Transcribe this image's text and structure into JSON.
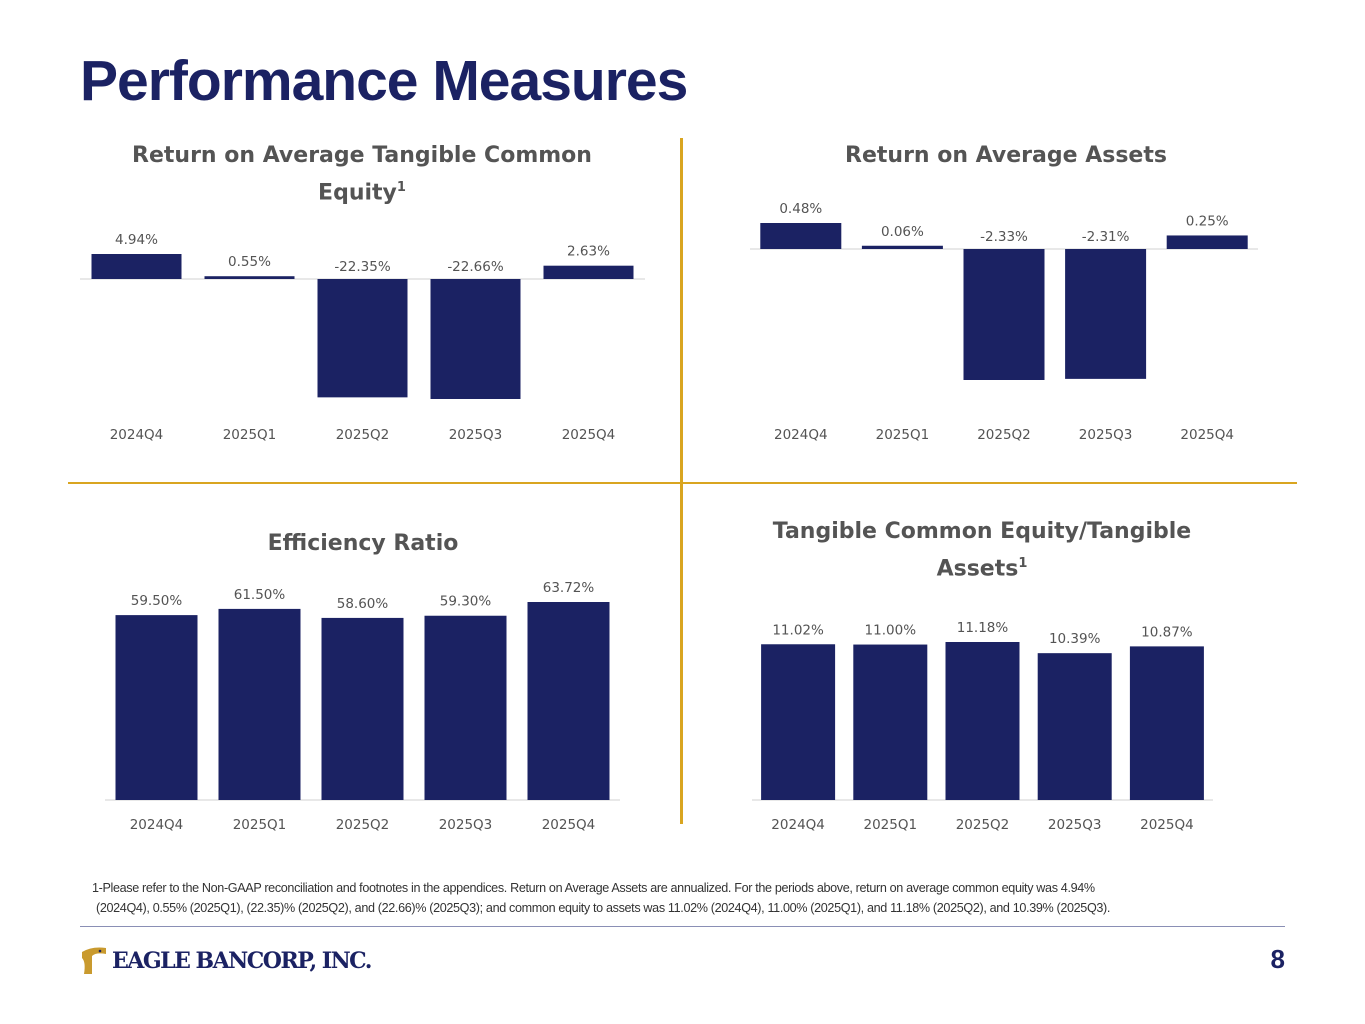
{
  "page": {
    "title": "Performance Measures",
    "footnote_line1": "1-Please refer to the Non-GAAP reconciliation and footnotes in the appendices. Return on Average Assets are annualized. For the periods above, return on average common equity was 4.94%",
    "footnote_line2": "(2024Q4), 0.55% (2025Q1), (22.35)% (2025Q2), and (22.66)% (2025Q3); and common equity to assets was 11.02% (2024Q4), 11.00% (2025Q1), and 11.18% (2025Q2), and 10.39% (2025Q3).",
    "logo_text": "EAGLE BANCORP, INC.",
    "page_number": "8"
  },
  "colors": {
    "bar": "#1b2263",
    "accent": "#d9a520",
    "title": "#1b2263",
    "label": "#545454"
  },
  "chart_data": [
    {
      "type": "bar",
      "title": "Return on Average Tangible Common Equity",
      "title_sup": "1",
      "categories": [
        "2024Q4",
        "2025Q1",
        "2025Q2",
        "2025Q3",
        "2025Q4"
      ],
      "values": [
        4.94,
        0.55,
        -22.35,
        -22.66,
        2.63
      ],
      "labels": [
        "4.94%",
        "0.55%",
        "-22.35%",
        "-22.66%",
        "2.63%"
      ],
      "ylim": [
        -22.66,
        4.94
      ],
      "xlabel": "",
      "ylabel": "",
      "legend": "none"
    },
    {
      "type": "bar",
      "title": "Return on Average Assets",
      "title_sup": "",
      "categories": [
        "2024Q4",
        "2025Q1",
        "2025Q2",
        "2025Q3",
        "2025Q4"
      ],
      "values": [
        0.48,
        0.06,
        -2.33,
        -2.31,
        0.25
      ],
      "labels": [
        "0.48%",
        "0.06%",
        "-2.33%",
        "-2.31%",
        "0.25%"
      ],
      "ylim": [
        -2.33,
        0.48
      ],
      "xlabel": "",
      "ylabel": "",
      "legend": "none"
    },
    {
      "type": "bar",
      "title": "Efficiency Ratio",
      "title_sup": "",
      "categories": [
        "2024Q4",
        "2025Q1",
        "2025Q2",
        "2025Q3",
        "2025Q4"
      ],
      "values": [
        59.5,
        61.5,
        58.6,
        59.3,
        63.72
      ],
      "labels": [
        "59.50%",
        "61.50%",
        "58.60%",
        "59.30%",
        "63.72%"
      ],
      "ylim": [
        0,
        63.72
      ],
      "xlabel": "",
      "ylabel": "",
      "legend": "none"
    },
    {
      "type": "bar",
      "title": "Tangible Common Equity/Tangible Assets",
      "title_sup": "1",
      "categories": [
        "2024Q4",
        "2025Q1",
        "2025Q2",
        "2025Q3",
        "2025Q4"
      ],
      "values": [
        11.02,
        11.0,
        11.18,
        10.39,
        10.87
      ],
      "labels": [
        "11.02%",
        "11.00%",
        "11.18%",
        "10.39%",
        "10.87%"
      ],
      "ylim": [
        0,
        11.18
      ],
      "xlabel": "",
      "ylabel": "",
      "legend": "none"
    }
  ]
}
